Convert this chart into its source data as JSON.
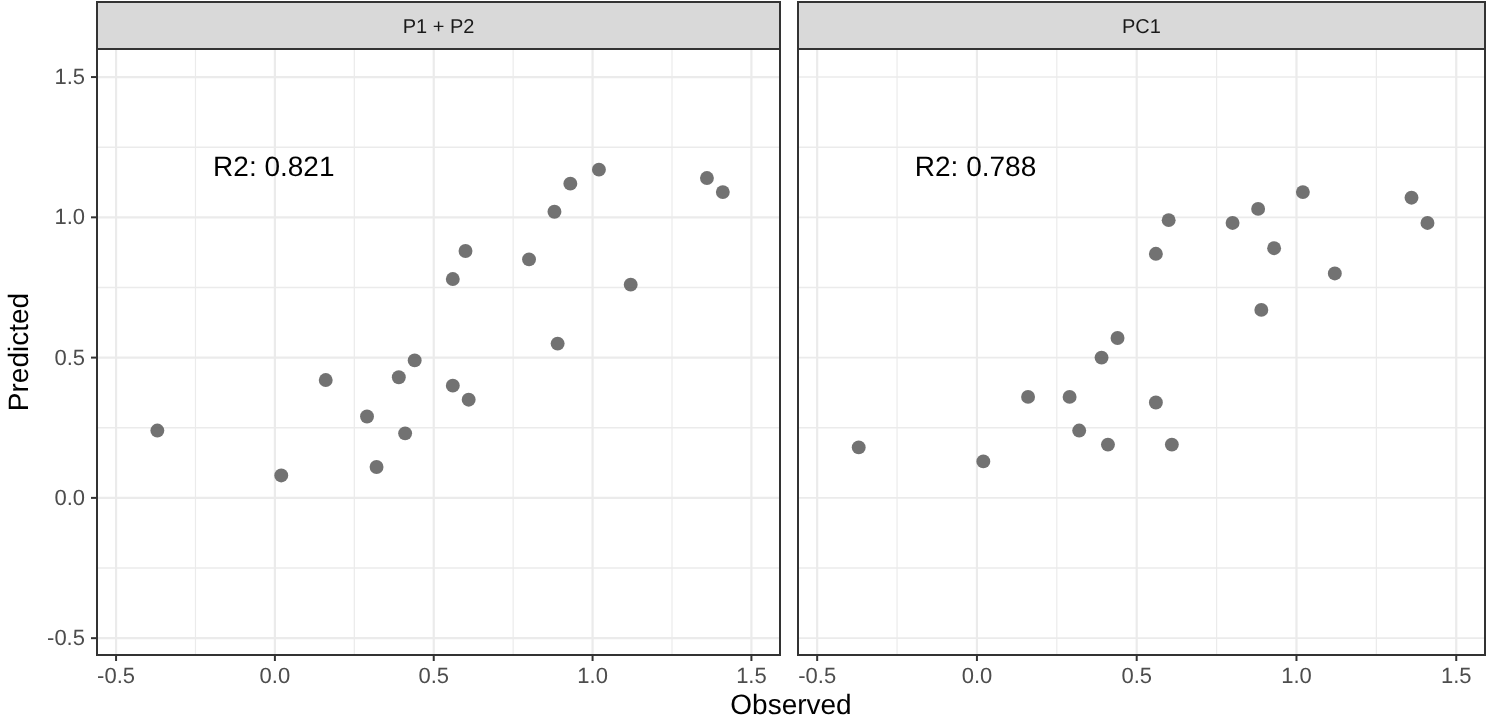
{
  "chart_data": [
    {
      "type": "scatter",
      "title": "P1 + P2",
      "xlabel": "Observed",
      "ylabel": "Predicted",
      "annotations": [
        "R2: 0.821"
      ],
      "color": "#636363",
      "marker": "circle",
      "grid": true,
      "xlim": [
        -0.56,
        1.59
      ],
      "ylim": [
        -0.56,
        1.6
      ],
      "xticks": [
        {
          "value": -0.5,
          "label": "-0.5"
        },
        {
          "value": -0.25,
          "label": null
        },
        {
          "value": 0,
          "label": "0.0"
        },
        {
          "value": 0.25,
          "label": null
        },
        {
          "value": 0.5,
          "label": "0.5"
        },
        {
          "value": 0.75,
          "label": null
        },
        {
          "value": 1,
          "label": "1.0"
        },
        {
          "value": 1.25,
          "label": null
        },
        {
          "value": 1.5,
          "label": "1.5"
        }
      ],
      "yticks": [
        {
          "value": -0.5,
          "label": "-0.5"
        },
        {
          "value": -0.25,
          "label": null
        },
        {
          "value": 0,
          "label": "0.0"
        },
        {
          "value": 0.25,
          "label": null
        },
        {
          "value": 0.5,
          "label": "0.5"
        },
        {
          "value": 0.75,
          "label": null
        },
        {
          "value": 1,
          "label": "1.0"
        },
        {
          "value": 1.25,
          "label": null
        },
        {
          "value": 1.5,
          "label": "1.5"
        }
      ],
      "x": [
        -0.37,
        0.02,
        0.16,
        0.29,
        0.32,
        0.39,
        0.41,
        0.44,
        0.56,
        0.56,
        0.6,
        0.61,
        0.8,
        0.88,
        0.89,
        0.93,
        1.02,
        1.12,
        1.36,
        1.41
      ],
      "values": [
        0.24,
        0.08,
        0.42,
        0.29,
        0.11,
        0.43,
        0.23,
        0.49,
        0.78,
        0.4,
        0.88,
        0.35,
        0.85,
        1.02,
        0.55,
        1.12,
        1.17,
        0.76,
        1.14,
        1.09
      ]
    },
    {
      "type": "scatter",
      "title": "PC1",
      "annotations": [
        "R2: 0.788"
      ],
      "color": "#636363",
      "marker": "circle",
      "grid": true,
      "tick_labels": "x",
      "xlim": [
        -0.56,
        1.59
      ],
      "ylim": [
        -0.56,
        1.6
      ],
      "xticks": [
        {
          "value": -0.5,
          "label": "-0.5"
        },
        {
          "value": -0.25,
          "label": null
        },
        {
          "value": 0,
          "label": "0.0"
        },
        {
          "value": 0.25,
          "label": null
        },
        {
          "value": 0.5,
          "label": "0.5"
        },
        {
          "value": 0.75,
          "label": null
        },
        {
          "value": 1,
          "label": "1.0"
        },
        {
          "value": 1.25,
          "label": null
        },
        {
          "value": 1.5,
          "label": "1.5"
        }
      ],
      "yticks": [
        {
          "value": -0.5,
          "label": null
        },
        {
          "value": -0.25,
          "label": null
        },
        {
          "value": 0,
          "label": null
        },
        {
          "value": 0.25,
          "label": null
        },
        {
          "value": 0.5,
          "label": null
        },
        {
          "value": 0.75,
          "label": null
        },
        {
          "value": 1,
          "label": null
        },
        {
          "value": 1.25,
          "label": null
        },
        {
          "value": 1.5,
          "label": null
        }
      ],
      "x": [
        -0.37,
        0.02,
        0.16,
        0.29,
        0.32,
        0.39,
        0.41,
        0.44,
        0.56,
        0.56,
        0.6,
        0.61,
        0.8,
        0.88,
        0.89,
        0.93,
        1.02,
        1.12,
        1.36,
        1.41
      ],
      "values": [
        0.18,
        0.13,
        0.36,
        0.36,
        0.24,
        0.5,
        0.19,
        0.57,
        0.87,
        0.34,
        0.99,
        0.19,
        0.98,
        1.03,
        0.67,
        0.89,
        1.09,
        0.8,
        1.07,
        0.98
      ]
    }
  ]
}
